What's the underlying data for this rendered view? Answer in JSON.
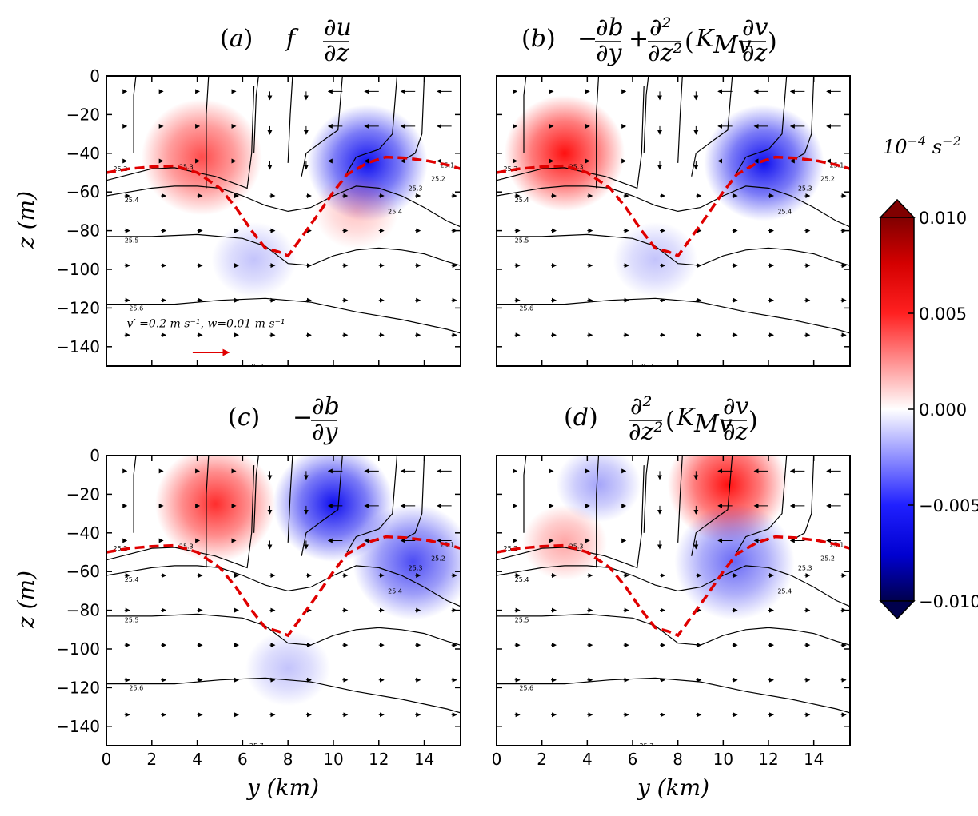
{
  "chart_data": [
    {
      "type": "heatmap",
      "panel": "a",
      "title": "(a)   f  ∂u/∂z",
      "xlabel": "",
      "ylabel": "z (m)",
      "xlim": [
        0,
        15.6
      ],
      "ylim": [
        -150,
        0
      ],
      "xticks": [
        "0",
        "2",
        "4",
        "6",
        "8",
        "10",
        "12",
        "14"
      ],
      "yticks": [
        "0",
        "−20",
        "−40",
        "−60",
        "−80",
        "−100",
        "−120",
        "−140"
      ],
      "isopycnal_labels": [
        "25.2",
        "25.3",
        "25.4",
        "25.5",
        "25.6",
        "25.7",
        "25.1",
        "25.2",
        "25.3",
        "25.4"
      ],
      "quiver_key": "v′ =0.2 m s⁻¹, w=0.01 m s⁻¹",
      "blobs": [
        {
          "sign": 1,
          "y_km": 4.2,
          "z_m": -42,
          "peak": 0.006
        },
        {
          "sign": -1,
          "y_km": 11.5,
          "z_m": -45,
          "peak": -0.008
        },
        {
          "sign": -1,
          "y_km": 6.5,
          "z_m": -95,
          "peak": -0.002
        },
        {
          "sign": 1,
          "y_km": 11.0,
          "z_m": -70,
          "peak": 0.002
        }
      ]
    },
    {
      "type": "heatmap",
      "panel": "b",
      "title": "(b)   −∂b/∂y + ∂²/∂z² (K_Mv ∂v/∂z)",
      "xlabel": "",
      "ylabel": "",
      "xlim": [
        0,
        15.6
      ],
      "ylim": [
        -150,
        0
      ],
      "xticks": [
        "0",
        "2",
        "4",
        "6",
        "8",
        "10",
        "12",
        "14"
      ],
      "yticks": [],
      "isopycnal_labels": [
        "25.2",
        "25.3",
        "25.4",
        "25.5",
        "25.6",
        "25.7",
        "25.1",
        "25.2",
        "25.3",
        "25.4"
      ],
      "blobs": [
        {
          "sign": 1,
          "y_km": 3.0,
          "z_m": -40,
          "peak": 0.008
        },
        {
          "sign": -1,
          "y_km": 11.8,
          "z_m": -45,
          "peak": -0.008
        },
        {
          "sign": -1,
          "y_km": 7.0,
          "z_m": -95,
          "peak": -0.002
        }
      ]
    },
    {
      "type": "heatmap",
      "panel": "c",
      "title": "(c)   −∂b/∂y",
      "xlabel": "y (km)",
      "ylabel": "z (m)",
      "xlim": [
        0,
        15.6
      ],
      "ylim": [
        -150,
        0
      ],
      "xticks": [
        "0",
        "2",
        "4",
        "6",
        "8",
        "10",
        "12",
        "14"
      ],
      "yticks": [
        "0",
        "−20",
        "−40",
        "−60",
        "−80",
        "−100",
        "−120",
        "−140"
      ],
      "isopycnal_labels": [
        "25.2",
        "25.3",
        "25.4",
        "25.5",
        "25.6",
        "25.7",
        "25.1",
        "25.2",
        "25.3",
        "25.4"
      ],
      "blobs": [
        {
          "sign": 1,
          "y_km": 4.8,
          "z_m": -25,
          "peak": 0.007
        },
        {
          "sign": -1,
          "y_km": 10.0,
          "z_m": -25,
          "peak": -0.009
        },
        {
          "sign": -1,
          "y_km": 13.5,
          "z_m": -55,
          "peak": -0.006
        },
        {
          "sign": -1,
          "y_km": 8.0,
          "z_m": -110,
          "peak": -0.002
        }
      ]
    },
    {
      "type": "heatmap",
      "panel": "d",
      "title": "(d)   ∂²/∂z² (K_Mv ∂v/∂z)",
      "xlabel": "y (km)",
      "ylabel": "",
      "xlim": [
        0,
        15.6
      ],
      "ylim": [
        -150,
        0
      ],
      "xticks": [
        "0",
        "2",
        "4",
        "6",
        "8",
        "10",
        "12",
        "14"
      ],
      "yticks": [],
      "isopycnal_labels": [
        "25.2",
        "25.3",
        "25.4",
        "25.5",
        "25.6",
        "25.7",
        "25.1",
        "25.2",
        "25.3",
        "25.4"
      ],
      "blobs": [
        {
          "sign": -1,
          "y_km": 4.5,
          "z_m": -15,
          "peak": -0.003
        },
        {
          "sign": 1,
          "y_km": 10.2,
          "z_m": -15,
          "peak": 0.009
        },
        {
          "sign": -1,
          "y_km": 10.5,
          "z_m": -55,
          "peak": -0.005
        },
        {
          "sign": 1,
          "y_km": 3.0,
          "z_m": -45,
          "peak": 0.003
        }
      ]
    }
  ],
  "colorbar": {
    "unit": "10⁻⁴ s⁻²",
    "ticks": [
      "0.010",
      "0.005",
      "0.000",
      "−0.005",
      "−0.010"
    ],
    "range": [
      -0.01,
      0.01
    ],
    "colormap": "seismic"
  },
  "colors": {
    "mld_line": "#e00000",
    "contour": "#000000",
    "quiver": "#000000",
    "quiver_key": "#e00000"
  }
}
